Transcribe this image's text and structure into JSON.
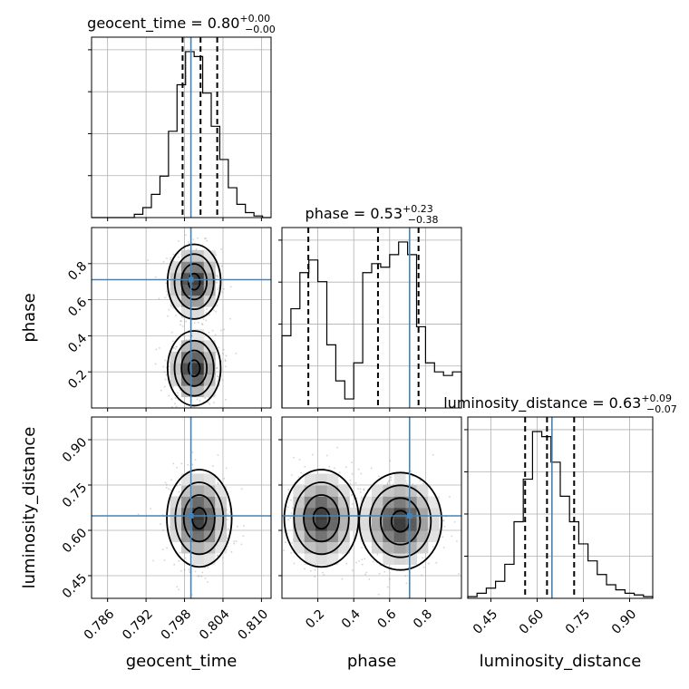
{
  "chart_data": {
    "type": "corner",
    "parameters": [
      {
        "key": "geocent_time",
        "label": "geocent_time",
        "range": [
          0.7835,
          0.8115
        ],
        "ticks": [
          0.786,
          0.792,
          0.798,
          0.804,
          0.81
        ],
        "tick_labels": [
          "0.786",
          "0.792",
          "0.798",
          "0.804",
          "0.810"
        ],
        "title": {
          "name": "geocent_time",
          "median": "0.80",
          "plus": "+0.00",
          "minus": "−0.00"
        },
        "quantiles": [
          0.7977,
          0.8005,
          0.8031
        ],
        "truth": 0.799,
        "hist_bins": [
          0.7835,
          0.8115
        ],
        "hist_counts": [
          0,
          0,
          0,
          0,
          0,
          2,
          6,
          14,
          25,
          52,
          80,
          100,
          97,
          75,
          55,
          35,
          18,
          8,
          3,
          1,
          0
        ]
      },
      {
        "key": "phase",
        "label": "phase",
        "range": [
          0.0,
          1.0
        ],
        "ticks": [
          0.2,
          0.4,
          0.6,
          0.8
        ],
        "tick_labels": [
          "0.2",
          "0.4",
          "0.6",
          "0.8"
        ],
        "title": {
          "name": "phase",
          "median": "0.53",
          "plus": "+0.23",
          "minus": "−0.38"
        },
        "quantiles": [
          0.147,
          0.535,
          0.761
        ],
        "truth": 0.711,
        "hist_bins": [
          0.0,
          1.0
        ],
        "hist_counts": [
          40,
          55,
          75,
          82,
          70,
          35,
          15,
          5,
          25,
          75,
          80,
          78,
          85,
          92,
          85,
          45,
          25,
          20,
          18,
          20
        ]
      },
      {
        "key": "luminosity_distance",
        "label": "luminosity_distance",
        "range": [
          0.375,
          0.975
        ],
        "ticks": [
          0.45,
          0.6,
          0.75,
          0.9
        ],
        "tick_labels": [
          "0.45",
          "0.60",
          "0.75",
          "0.90"
        ],
        "title": {
          "name": "luminosity_distance",
          "median": "0.63",
          "plus": "+0.09",
          "minus": "−0.07"
        },
        "quantiles": [
          0.561,
          0.632,
          0.72
        ],
        "truth": 0.648,
        "hist_bins": [
          0.375,
          0.975
        ],
        "hist_counts": [
          1,
          3,
          6,
          10,
          20,
          45,
          70,
          98,
          95,
          80,
          60,
          45,
          32,
          22,
          14,
          8,
          5,
          3,
          2,
          1
        ]
      }
    ],
    "pairs": [
      {
        "x": "geocent_time",
        "y": "phase",
        "modes": [
          {
            "cx": 0.7995,
            "cy": 0.7,
            "sx": 0.0018,
            "sy": 0.09
          },
          {
            "cx": 0.7995,
            "cy": 0.22,
            "sx": 0.0018,
            "sy": 0.09
          }
        ]
      },
      {
        "x": "geocent_time",
        "y": "luminosity_distance",
        "modes": [
          {
            "cx": 0.8003,
            "cy": 0.64,
            "sx": 0.0022,
            "sy": 0.07
          }
        ]
      },
      {
        "x": "phase",
        "y": "luminosity_distance",
        "modes": [
          {
            "cx": 0.22,
            "cy": 0.64,
            "sx": 0.09,
            "sy": 0.07
          },
          {
            "cx": 0.66,
            "cy": 0.63,
            "sx": 0.1,
            "sy": 0.07
          }
        ]
      }
    ],
    "colors": {
      "truth": "#4682b4",
      "contours": "#000000",
      "points": "#808080",
      "density": "#000000"
    }
  }
}
